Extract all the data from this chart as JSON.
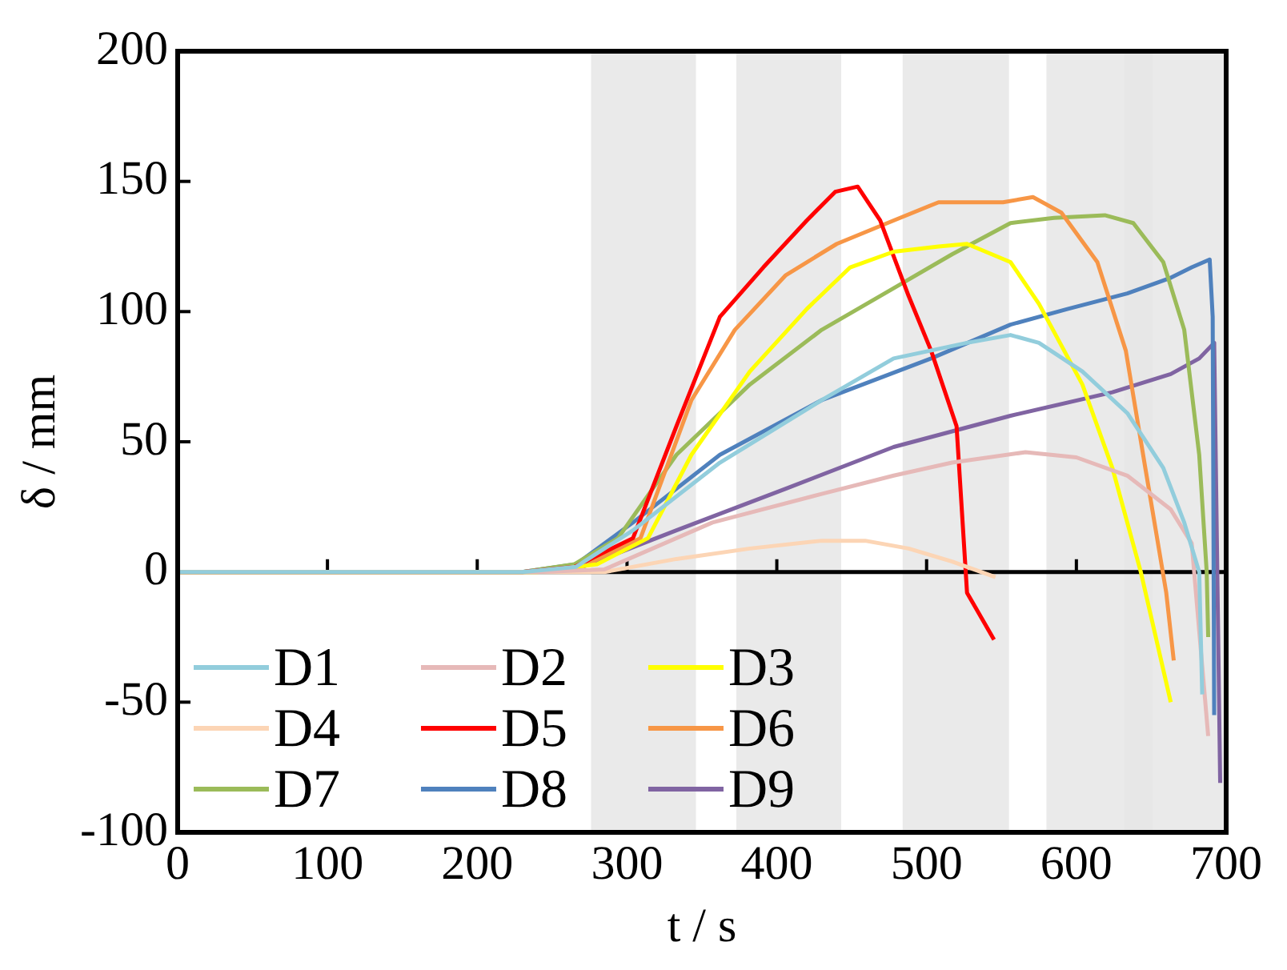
{
  "chart_data": {
    "type": "line",
    "xlabel": "t / s",
    "ylabel": "δ / mm",
    "xlim": [
      0,
      700
    ],
    "xticks": [
      0,
      100,
      200,
      300,
      400,
      500,
      600,
      700
    ],
    "ylim": [
      -100,
      200
    ],
    "yticks": [
      -100,
      -50,
      0,
      50,
      100,
      150,
      200
    ],
    "grid": false,
    "ref_lines": [
      {
        "axis": "y",
        "value": 0,
        "color": "#000000"
      }
    ],
    "legend": "bottom left",
    "line_style": "solid",
    "marker": "none",
    "bands": [
      {
        "axis": "x",
        "from": 276,
        "to": 346,
        "color": "#e6e6e6"
      },
      {
        "axis": "x",
        "from": 373,
        "to": 443,
        "color": "#e6e6e6"
      },
      {
        "axis": "x",
        "from": 484,
        "to": 555,
        "color": "#e6e6e6"
      },
      {
        "axis": "x",
        "from": 580,
        "to": 651,
        "color": "#e6e6e6"
      },
      {
        "axis": "x",
        "from": 632,
        "to": 700,
        "color": "#e6e6e6"
      }
    ],
    "series": [
      {
        "name": "D1",
        "color": "#92cddc",
        "x": [
          0,
          230,
          266,
          304,
          362,
          430,
          478,
          527,
          556,
          575,
          604,
          634,
          658,
          672,
          682,
          684
        ],
        "values": [
          0,
          0,
          2,
          16,
          42,
          66,
          82,
          88,
          91,
          88,
          77,
          61,
          40,
          19,
          0,
          -47
        ]
      },
      {
        "name": "D2",
        "color": "#e6b9b8",
        "x": [
          0,
          240,
          285,
          357,
          430,
          478,
          517,
          566,
          600,
          634,
          663,
          677,
          688
        ],
        "values": [
          0,
          0,
          1,
          19,
          30,
          37,
          42,
          46,
          44,
          37,
          24,
          11,
          -63
        ]
      },
      {
        "name": "D3",
        "color": "#ffff00",
        "x": [
          0,
          240,
          280,
          314,
          343,
          382,
          420,
          449,
          478,
          508,
          527,
          556,
          575,
          604,
          624,
          643,
          663
        ],
        "values": [
          0,
          0,
          3,
          13,
          45,
          77,
          101,
          117,
          123,
          125,
          126,
          119,
          103,
          72,
          40,
          0,
          -50
        ]
      },
      {
        "name": "D4",
        "color": "#fcd5b5",
        "x": [
          0,
          250,
          285,
          333,
          382,
          430,
          459,
          488,
          517,
          546
        ],
        "values": [
          0,
          0,
          0,
          5,
          9,
          12,
          12,
          9,
          4,
          -2
        ]
      },
      {
        "name": "D5",
        "color": "#ff0000",
        "x": [
          0,
          230,
          265,
          304,
          333,
          362,
          391,
          420,
          439,
          454,
          469,
          488,
          503,
          520,
          527,
          545
        ],
        "values": [
          0,
          0,
          2,
          13,
          56,
          98,
          117,
          135,
          146,
          148,
          135,
          106,
          85,
          56,
          -8,
          -26
        ]
      },
      {
        "name": "D6",
        "color": "#f79646",
        "x": [
          0,
          230,
          270,
          309,
          343,
          372,
          406,
          440,
          478,
          508,
          551,
          571,
          590,
          614,
          633,
          646,
          660,
          665
        ],
        "values": [
          0,
          0,
          2,
          13,
          66,
          93,
          114,
          126,
          135,
          142,
          142,
          144,
          138,
          119,
          85,
          40,
          -8,
          -34
        ]
      },
      {
        "name": "D7",
        "color": "#9bbb59",
        "x": [
          0,
          230,
          265,
          294,
          333,
          382,
          430,
          478,
          517,
          556,
          585,
          619,
          638,
          658,
          672,
          682,
          687,
          688
        ],
        "values": [
          0,
          0,
          3,
          13,
          45,
          72,
          93,
          109,
          122,
          134,
          136,
          137,
          134,
          119,
          93,
          45,
          0,
          -25
        ]
      },
      {
        "name": "D8",
        "color": "#4f81bd",
        "x": [
          0,
          230,
          266,
          304,
          362,
          430,
          503,
          556,
          594,
          634,
          663,
          677,
          689,
          691,
          692
        ],
        "values": [
          0,
          0,
          3,
          19,
          45,
          66,
          82,
          95,
          101,
          107,
          113,
          117,
          120,
          98,
          -55
        ]
      },
      {
        "name": "D9",
        "color": "#8064a2",
        "x": [
          0,
          230,
          266,
          333,
          406,
          478,
          556,
          624,
          663,
          682,
          692,
          696
        ],
        "values": [
          0,
          0,
          1,
          16,
          32,
          48,
          60,
          69,
          76,
          82,
          88,
          -81
        ]
      }
    ]
  }
}
